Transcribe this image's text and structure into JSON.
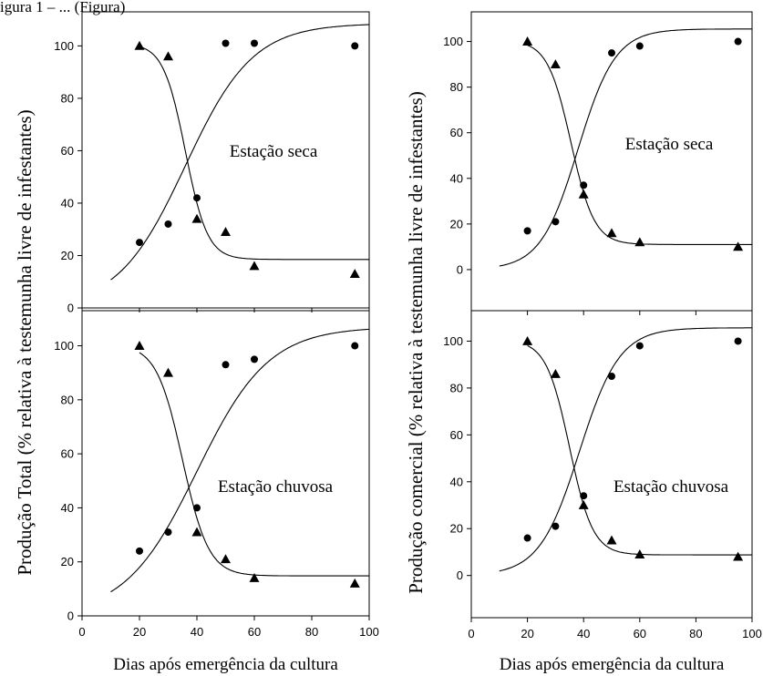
{
  "caption_fragment": "igura 1 – ... (Figura)",
  "ylabels": {
    "left": "Produção Total (% relativa à testemunha livre de infestantes)",
    "right": "Produção comercial (% relativa à testemunha livre de infestantes)"
  },
  "chart_data": [
    {
      "type": "scatter",
      "label": "Estação seca",
      "xlim": [
        0,
        100
      ],
      "ylim": [
        0,
        113
      ],
      "xticks": [],
      "yticks": [
        0,
        20,
        40,
        60,
        80,
        100
      ],
      "xlabel": "",
      "series": [
        {
          "marker": "triangle",
          "x": [
            20,
            30,
            40,
            50,
            60,
            95
          ],
          "y": [
            100,
            96,
            34,
            29,
            16,
            13
          ],
          "curve": {
            "kind": "decreasing",
            "top": 101,
            "bottom": 18.5,
            "x50": 36,
            "k": 0.26
          }
        },
        {
          "marker": "circle",
          "x": [
            20,
            30,
            40,
            50,
            60,
            95
          ],
          "y": [
            25,
            32,
            42,
            101,
            101,
            100
          ],
          "curve": {
            "kind": "increasing",
            "start": 10,
            "asymptote": 108.6,
            "x50": 36,
            "k": 0.085
          }
        }
      ]
    },
    {
      "type": "scatter",
      "label": "Estação seca",
      "xlim": [
        0,
        100
      ],
      "ylim": [
        -18,
        113
      ],
      "xticks": [],
      "yticks": [
        0,
        20,
        40,
        60,
        80,
        100
      ],
      "xlabel": "",
      "series": [
        {
          "marker": "triangle",
          "x": [
            20,
            30,
            40,
            50,
            60,
            95
          ],
          "y": [
            100,
            90,
            33,
            16,
            12,
            10
          ],
          "curve": {
            "kind": "decreasing",
            "top": 100.5,
            "bottom": 11,
            "x50": 35.5,
            "k": 0.24
          }
        },
        {
          "marker": "circle",
          "x": [
            20,
            30,
            40,
            50,
            60,
            95
          ],
          "y": [
            17,
            21,
            37,
            95,
            98,
            100
          ],
          "curve": {
            "kind": "increasing",
            "start": 10,
            "asymptote": 105.5,
            "x50": 38,
            "k": 0.15
          }
        }
      ]
    },
    {
      "type": "scatter",
      "label": "Estação chuvosa",
      "xlim": [
        0,
        100
      ],
      "ylim": [
        0,
        113
      ],
      "xticks": [
        0,
        20,
        40,
        60,
        80,
        100
      ],
      "yticks": [
        0,
        20,
        40,
        60,
        80,
        100
      ],
      "xlabel": "Dias após emergência da cultura",
      "series": [
        {
          "marker": "triangle",
          "x": [
            20,
            30,
            40,
            50,
            60,
            95
          ],
          "y": [
            100,
            90,
            31,
            21,
            14,
            12
          ],
          "curve": {
            "kind": "decreasing",
            "top": 100.5,
            "bottom": 14.8,
            "x50": 35,
            "k": 0.22
          }
        },
        {
          "marker": "circle",
          "x": [
            20,
            30,
            40,
            50,
            60,
            95
          ],
          "y": [
            24,
            31,
            40,
            93,
            95,
            100
          ],
          "curve": {
            "kind": "increasing",
            "start": 10,
            "asymptote": 107,
            "x50": 40,
            "k": 0.08
          }
        }
      ]
    },
    {
      "type": "scatter",
      "label": "Estação chuvosa",
      "xlim": [
        0,
        100
      ],
      "ylim": [
        -18,
        113
      ],
      "xticks": [
        0,
        20,
        40,
        60,
        80,
        100
      ],
      "yticks": [
        0,
        20,
        40,
        60,
        80,
        100
      ],
      "xlabel": "Dias após emergência da cultura",
      "series": [
        {
          "marker": "triangle",
          "x": [
            20,
            30,
            40,
            50,
            60,
            95
          ],
          "y": [
            100,
            86,
            30,
            15,
            9,
            8
          ],
          "curve": {
            "kind": "decreasing",
            "top": 100.5,
            "bottom": 8.8,
            "x50": 35,
            "k": 0.24
          }
        },
        {
          "marker": "circle",
          "x": [
            20,
            30,
            40,
            50,
            60,
            95
          ],
          "y": [
            16,
            21,
            34,
            85,
            98,
            100
          ],
          "curve": {
            "kind": "increasing",
            "start": 10,
            "asymptote": 105.7,
            "x50": 38.5,
            "k": 0.14
          }
        }
      ]
    }
  ]
}
